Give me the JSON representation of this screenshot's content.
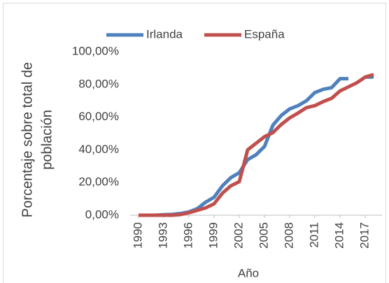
{
  "chart_data": {
    "type": "line",
    "y_label": [
      "Porcentaje sobre total de",
      "población"
    ],
    "x_label": "Año",
    "x": [
      1990,
      1991,
      1992,
      1993,
      1994,
      1995,
      1996,
      1997,
      1998,
      1999,
      2000,
      2001,
      2002,
      2003,
      2004,
      2005,
      2006,
      2007,
      2008,
      2009,
      2010,
      2011,
      2012,
      2013,
      2014,
      2015,
      2016,
      2017,
      2018
    ],
    "series": [
      {
        "name": "Irlanda",
        "color": "#4f81bd",
        "values": [
          0,
          0,
          0,
          0.3,
          0.5,
          1.1,
          2,
          4,
          8,
          11,
          18,
          23,
          26,
          34,
          37,
          42,
          55,
          61,
          65,
          67,
          70,
          75,
          77,
          78,
          83.5,
          83.5,
          null,
          84.5,
          84.5
        ]
      },
      {
        "name": "España",
        "color": "#c0504d",
        "values": [
          0,
          0,
          0,
          0,
          0,
          0.4,
          1.5,
          3,
          4.5,
          7,
          13.5,
          18,
          20.5,
          40,
          44,
          48,
          50.5,
          55.5,
          59.5,
          62.5,
          65.8,
          67,
          69.5,
          71.5,
          76,
          78.5,
          81,
          84.5,
          86
        ]
      }
    ],
    "xlim": [
      1989,
      2019
    ],
    "xticks": [
      1990,
      1993,
      1996,
      1999,
      2002,
      2005,
      2008,
      2011,
      2014,
      2017
    ],
    "ylim": [
      0,
      100
    ],
    "yticks": [
      {
        "value": 0,
        "label": "0,00%"
      },
      {
        "value": 20,
        "label": "20,00%"
      },
      {
        "value": 40,
        "label": "40,00%"
      },
      {
        "value": 60,
        "label": "60,00%"
      },
      {
        "value": 80,
        "label": "80,00%"
      },
      {
        "value": 100,
        "label": "100,00%"
      }
    ],
    "legend": "top"
  }
}
